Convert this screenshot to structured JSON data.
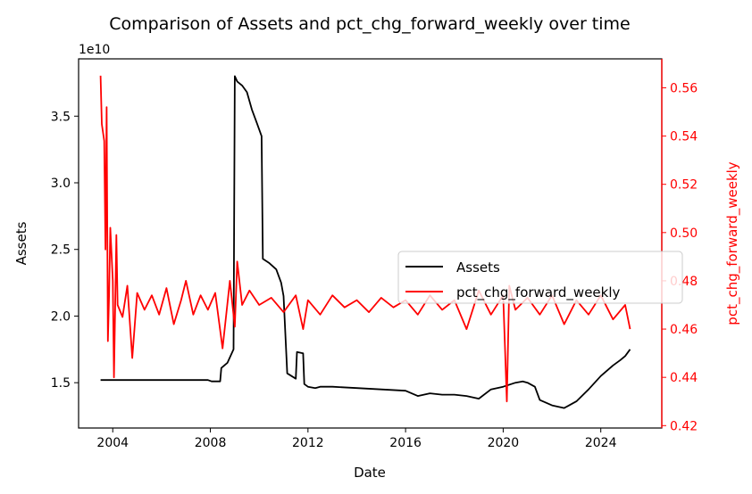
{
  "chart_data": {
    "type": "line",
    "title": "Comparison of Assets and pct_chg_forward_weekly over time",
    "xlabel": "Date",
    "ylabel_left": "Assets",
    "ylabel_right": "pct_chg_forward_weekly",
    "left_offset_text": "1e10",
    "x_ticks": [
      "2004",
      "2008",
      "2012",
      "2016",
      "2020",
      "2024"
    ],
    "x_tick_years": [
      2004,
      2008,
      2012,
      2016,
      2020,
      2024
    ],
    "xlim": [
      2002.6,
      2026.5
    ],
    "left_ticks": [
      "1.5",
      "2.0",
      "2.5",
      "3.0",
      "3.5"
    ],
    "left_tick_values": [
      1.5,
      2.0,
      2.5,
      3.0,
      3.5
    ],
    "ylim_left": [
      1.16,
      3.93
    ],
    "right_ticks": [
      "0.42",
      "0.44",
      "0.46",
      "0.48",
      "0.50",
      "0.52",
      "0.54",
      "0.56"
    ],
    "right_tick_values": [
      0.42,
      0.44,
      0.46,
      0.48,
      0.5,
      0.52,
      0.54,
      0.56
    ],
    "ylim_right": [
      0.419,
      0.572
    ],
    "legend_position": "center-right",
    "grid": false,
    "series": [
      {
        "name": "Assets",
        "axis": "left",
        "color": "#000000",
        "points": [
          [
            2003.5,
            1.52
          ],
          [
            2004.0,
            1.52
          ],
          [
            2005.0,
            1.52
          ],
          [
            2006.0,
            1.52
          ],
          [
            2007.0,
            1.52
          ],
          [
            2007.9,
            1.52
          ],
          [
            2008.05,
            1.51
          ],
          [
            2008.4,
            1.51
          ],
          [
            2008.45,
            1.61
          ],
          [
            2008.7,
            1.65
          ],
          [
            2008.95,
            1.75
          ],
          [
            2009.0,
            3.8
          ],
          [
            2009.1,
            3.76
          ],
          [
            2009.3,
            3.73
          ],
          [
            2009.5,
            3.68
          ],
          [
            2009.7,
            3.55
          ],
          [
            2009.9,
            3.45
          ],
          [
            2010.0,
            3.4
          ],
          [
            2010.1,
            3.35
          ],
          [
            2010.15,
            2.43
          ],
          [
            2010.4,
            2.4
          ],
          [
            2010.7,
            2.35
          ],
          [
            2010.9,
            2.25
          ],
          [
            2011.0,
            2.15
          ],
          [
            2011.15,
            1.57
          ],
          [
            2011.5,
            1.53
          ],
          [
            2011.55,
            1.73
          ],
          [
            2011.8,
            1.72
          ],
          [
            2011.85,
            1.49
          ],
          [
            2012.0,
            1.47
          ],
          [
            2012.3,
            1.46
          ],
          [
            2012.5,
            1.47
          ],
          [
            2013.0,
            1.47
          ],
          [
            2014.0,
            1.46
          ],
          [
            2015.0,
            1.45
          ],
          [
            2016.0,
            1.44
          ],
          [
            2016.5,
            1.4
          ],
          [
            2017.0,
            1.42
          ],
          [
            2017.5,
            1.41
          ],
          [
            2018.0,
            1.41
          ],
          [
            2018.5,
            1.4
          ],
          [
            2019.0,
            1.38
          ],
          [
            2019.5,
            1.45
          ],
          [
            2020.0,
            1.47
          ],
          [
            2020.5,
            1.5
          ],
          [
            2020.8,
            1.51
          ],
          [
            2021.0,
            1.5
          ],
          [
            2021.3,
            1.47
          ],
          [
            2021.5,
            1.37
          ],
          [
            2022.0,
            1.33
          ],
          [
            2022.5,
            1.31
          ],
          [
            2023.0,
            1.36
          ],
          [
            2023.5,
            1.45
          ],
          [
            2024.0,
            1.55
          ],
          [
            2024.5,
            1.63
          ],
          [
            2024.8,
            1.67
          ],
          [
            2025.0,
            1.7
          ],
          [
            2025.2,
            1.75
          ]
        ]
      },
      {
        "name": "pct_chg_forward_weekly",
        "axis": "right",
        "color": "#ff0000",
        "points": [
          [
            2003.5,
            0.565
          ],
          [
            2003.55,
            0.545
          ],
          [
            2003.65,
            0.538
          ],
          [
            2003.7,
            0.493
          ],
          [
            2003.75,
            0.552
          ],
          [
            2003.8,
            0.455
          ],
          [
            2003.85,
            0.475
          ],
          [
            2003.9,
            0.502
          ],
          [
            2004.0,
            0.48
          ],
          [
            2004.05,
            0.44
          ],
          [
            2004.1,
            0.47
          ],
          [
            2004.15,
            0.499
          ],
          [
            2004.2,
            0.47
          ],
          [
            2004.4,
            0.465
          ],
          [
            2004.6,
            0.478
          ],
          [
            2004.8,
            0.448
          ],
          [
            2005.0,
            0.475
          ],
          [
            2005.3,
            0.468
          ],
          [
            2005.6,
            0.474
          ],
          [
            2005.9,
            0.466
          ],
          [
            2006.2,
            0.477
          ],
          [
            2006.5,
            0.462
          ],
          [
            2006.8,
            0.472
          ],
          [
            2007.0,
            0.48
          ],
          [
            2007.3,
            0.466
          ],
          [
            2007.6,
            0.474
          ],
          [
            2007.9,
            0.468
          ],
          [
            2008.2,
            0.475
          ],
          [
            2008.5,
            0.452
          ],
          [
            2008.8,
            0.48
          ],
          [
            2009.0,
            0.461
          ],
          [
            2009.1,
            0.488
          ],
          [
            2009.3,
            0.47
          ],
          [
            2009.6,
            0.476
          ],
          [
            2010.0,
            0.47
          ],
          [
            2010.5,
            0.473
          ],
          [
            2011.0,
            0.467
          ],
          [
            2011.5,
            0.474
          ],
          [
            2011.8,
            0.46
          ],
          [
            2012.0,
            0.472
          ],
          [
            2012.5,
            0.466
          ],
          [
            2013.0,
            0.474
          ],
          [
            2013.5,
            0.469
          ],
          [
            2014.0,
            0.472
          ],
          [
            2014.5,
            0.467
          ],
          [
            2015.0,
            0.473
          ],
          [
            2015.5,
            0.469
          ],
          [
            2016.0,
            0.472
          ],
          [
            2016.5,
            0.466
          ],
          [
            2017.0,
            0.474
          ],
          [
            2017.5,
            0.468
          ],
          [
            2018.0,
            0.472
          ],
          [
            2018.5,
            0.46
          ],
          [
            2019.0,
            0.476
          ],
          [
            2019.5,
            0.466
          ],
          [
            2020.0,
            0.474
          ],
          [
            2020.15,
            0.43
          ],
          [
            2020.25,
            0.478
          ],
          [
            2020.5,
            0.468
          ],
          [
            2021.0,
            0.473
          ],
          [
            2021.5,
            0.466
          ],
          [
            2022.0,
            0.474
          ],
          [
            2022.5,
            0.462
          ],
          [
            2023.0,
            0.472
          ],
          [
            2023.5,
            0.466
          ],
          [
            2024.0,
            0.474
          ],
          [
            2024.5,
            0.464
          ],
          [
            2025.0,
            0.47
          ],
          [
            2025.2,
            0.46
          ]
        ]
      }
    ]
  }
}
